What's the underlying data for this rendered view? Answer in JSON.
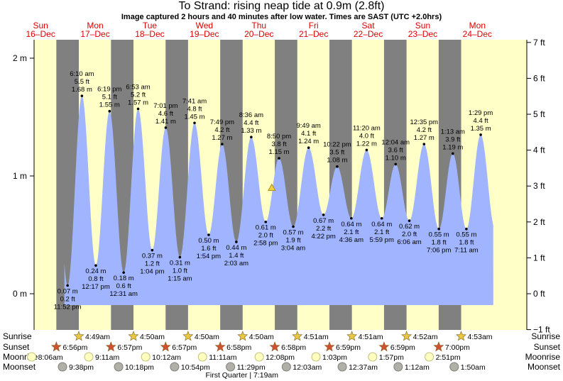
{
  "header": {
    "title": "To Strand: rising  neap tide at 0.9m (2.8ft)",
    "subtitle": "Image captured 2 hours and 40 minutes after low water. Times are SAST (UTC +2.0hrs)"
  },
  "colors": {
    "day": "#ffffc8",
    "night": "#808080",
    "tide": "#a0b4ff",
    "day_label": "#e00000",
    "sun_star": "#e8c840",
    "sunset_star": "#d05030",
    "moonrise": "#ffffc0",
    "moonset": "#b0b0a8"
  },
  "chart_data": {
    "type": "area",
    "title": "To Strand: rising  neap tide at 0.9m (2.8ft)",
    "y_left_ticks": [
      {
        "v": 0,
        "label": "0 m"
      },
      {
        "v": 1,
        "label": "1 m"
      },
      {
        "v": 2,
        "label": "2 m"
      }
    ],
    "y_right_ticks": [
      {
        "v": 7,
        "label": "7 ft"
      },
      {
        "v": 6,
        "label": "6 ft"
      },
      {
        "v": 5,
        "label": "5 ft"
      },
      {
        "v": 4,
        "label": "4 ft"
      },
      {
        "v": 3,
        "label": "3 ft"
      },
      {
        "v": 2,
        "label": "2 ft"
      },
      {
        "v": 1,
        "label": "1 ft"
      },
      {
        "v": 0,
        "label": "0 ft"
      },
      {
        "v": -1,
        "label": "−1 ft"
      }
    ],
    "ylim_m": [
      -0.2,
      2.1
    ],
    "days": [
      {
        "name": "Sun",
        "date": "16–Dec"
      },
      {
        "name": "Mon",
        "date": "17–Dec"
      },
      {
        "name": "Tue",
        "date": "18–Dec"
      },
      {
        "name": "Wed",
        "date": "19–Dec"
      },
      {
        "name": "Thu",
        "date": "20–Dec"
      },
      {
        "name": "Fri",
        "date": "21–Dec"
      },
      {
        "name": "Sat",
        "date": "22–Dec"
      },
      {
        "name": "Sun",
        "date": "23–Dec"
      },
      {
        "name": "Mon",
        "date": "24–Dec"
      }
    ],
    "tide_events": [
      {
        "t": "11:52 pm",
        "m": 0.07,
        "mlabel": "0.07 m",
        "ft": "0.2 ft",
        "type": "low",
        "day": 0,
        "hour": 23.87
      },
      {
        "t": "6:10 am",
        "m": 1.68,
        "mlabel": "1.68 m",
        "ft": "5.5 ft",
        "type": "high",
        "day": 1,
        "hour": 6.17
      },
      {
        "t": "12:17 pm",
        "m": 0.24,
        "mlabel": "0.24 m",
        "ft": "0.8 ft",
        "type": "low",
        "day": 1,
        "hour": 12.28
      },
      {
        "t": "6:19 pm",
        "m": 1.55,
        "mlabel": "1.55 m",
        "ft": "5.1 ft",
        "type": "high",
        "day": 1,
        "hour": 18.32
      },
      {
        "t": "12:31 am",
        "m": 0.18,
        "mlabel": "0.18 m",
        "ft": "0.6 ft",
        "type": "low",
        "day": 2,
        "hour": 0.52
      },
      {
        "t": "6:53 am",
        "m": 1.57,
        "mlabel": "1.57 m",
        "ft": "5.2 ft",
        "type": "high",
        "day": 2,
        "hour": 6.88
      },
      {
        "t": "1:04 pm",
        "m": 0.37,
        "mlabel": "0.37 m",
        "ft": "1.2 ft",
        "type": "low",
        "day": 2,
        "hour": 13.07
      },
      {
        "t": "7:01 pm",
        "m": 1.41,
        "mlabel": "1.41 m",
        "ft": "4.6 ft",
        "type": "high",
        "day": 2,
        "hour": 19.02
      },
      {
        "t": "1:15 am",
        "m": 0.31,
        "mlabel": "0.31 m",
        "ft": "1.0 ft",
        "type": "low",
        "day": 3,
        "hour": 1.25
      },
      {
        "t": "7:41 am",
        "m": 1.45,
        "mlabel": "1.45 m",
        "ft": "4.8 ft",
        "type": "high",
        "day": 3,
        "hour": 7.68
      },
      {
        "t": "1:54 pm",
        "m": 0.5,
        "mlabel": "0.50 m",
        "ft": "1.6 ft",
        "type": "low",
        "day": 3,
        "hour": 13.9
      },
      {
        "t": "7:49 pm",
        "m": 1.27,
        "mlabel": "1.27 m",
        "ft": "4.2 ft",
        "type": "high",
        "day": 3,
        "hour": 19.82
      },
      {
        "t": "2:03 am",
        "m": 0.44,
        "mlabel": "0.44 m",
        "ft": "1.4 ft",
        "type": "low",
        "day": 4,
        "hour": 2.05
      },
      {
        "t": "8:36 am",
        "m": 1.33,
        "mlabel": "1.33 m",
        "ft": "4.4 ft",
        "type": "high",
        "day": 4,
        "hour": 8.6
      },
      {
        "t": "2:58 pm",
        "m": 0.61,
        "mlabel": "0.61 m",
        "ft": "2.0 ft",
        "type": "low",
        "day": 4,
        "hour": 14.97
      },
      {
        "t": "8:50 pm",
        "m": 1.15,
        "mlabel": "1.15 m",
        "ft": "3.8 ft",
        "type": "high",
        "day": 4,
        "hour": 20.83
      },
      {
        "t": "3:04 am",
        "m": 0.57,
        "mlabel": "0.57 m",
        "ft": "1.9 ft",
        "type": "low",
        "day": 5,
        "hour": 3.07
      },
      {
        "t": "9:49 am",
        "m": 1.24,
        "mlabel": "1.24 m",
        "ft": "4.1 ft",
        "type": "high",
        "day": 5,
        "hour": 9.82
      },
      {
        "t": "4:22 pm",
        "m": 0.67,
        "mlabel": "0.67 m",
        "ft": "2.2 ft",
        "type": "low",
        "day": 5,
        "hour": 16.37
      },
      {
        "t": "10:22 pm",
        "m": 1.08,
        "mlabel": "1.08 m",
        "ft": "3.5 ft",
        "type": "high",
        "day": 5,
        "hour": 22.37
      },
      {
        "t": "4:36 am",
        "m": 0.64,
        "mlabel": "0.64 m",
        "ft": "2.1 ft",
        "type": "low",
        "day": 6,
        "hour": 4.6
      },
      {
        "t": "11:20 am",
        "m": 1.22,
        "mlabel": "1.22 m",
        "ft": "4.0 ft",
        "type": "high",
        "day": 6,
        "hour": 11.33
      },
      {
        "t": "5:59 pm",
        "m": 0.64,
        "mlabel": "0.64 m",
        "ft": "2.1 ft",
        "type": "low",
        "day": 6,
        "hour": 17.98
      },
      {
        "t": "12:04 am",
        "m": 1.1,
        "mlabel": "1.10 m",
        "ft": "3.6 ft",
        "type": "high",
        "day": 7,
        "hour": 0.07
      },
      {
        "t": "6:06 am",
        "m": 0.62,
        "mlabel": "0.62 m",
        "ft": "2.0 ft",
        "type": "low",
        "day": 7,
        "hour": 6.1
      },
      {
        "t": "12:35 pm",
        "m": 1.27,
        "mlabel": "1.27 m",
        "ft": "4.2 ft",
        "type": "high",
        "day": 7,
        "hour": 12.58
      },
      {
        "t": "7:06 pm",
        "m": 0.55,
        "mlabel": "0.55 m",
        "ft": "1.8 ft",
        "type": "low",
        "day": 7,
        "hour": 19.1
      },
      {
        "t": "1:13 am",
        "m": 1.19,
        "mlabel": "1.19 m",
        "ft": "3.9 ft",
        "type": "high",
        "day": 8,
        "hour": 1.22
      },
      {
        "t": "7:11 am",
        "m": 0.55,
        "mlabel": "0.55 m",
        "ft": "1.8 ft",
        "type": "low",
        "day": 8,
        "hour": 7.18
      },
      {
        "t": "1:29 pm",
        "m": 1.35,
        "mlabel": "1.35 m",
        "ft": "4.4 ft",
        "type": "high",
        "day": 8,
        "hour": 13.48
      }
    ],
    "current": {
      "m": 0.9,
      "day": 4,
      "hour": 17.63
    },
    "series_end": {
      "m": 0.9,
      "day": 8,
      "hour": 19.0
    },
    "series_start": {
      "m": 1.68,
      "day": 0,
      "hour": 0.0
    },
    "sunrise": [
      {
        "t": "4:49am",
        "day": 1,
        "hour": 4.82
      },
      {
        "t": "4:50am",
        "day": 2,
        "hour": 4.83
      },
      {
        "t": "4:50am",
        "day": 3,
        "hour": 4.83
      },
      {
        "t": "4:50am",
        "day": 4,
        "hour": 4.83
      },
      {
        "t": "4:51am",
        "day": 5,
        "hour": 4.85
      },
      {
        "t": "4:51am",
        "day": 6,
        "hour": 4.85
      },
      {
        "t": "4:52am",
        "day": 7,
        "hour": 4.87
      },
      {
        "t": "4:53am",
        "day": 8,
        "hour": 4.88
      }
    ],
    "sunset": [
      {
        "t": "6:56pm",
        "day": 0,
        "hour": 18.93
      },
      {
        "t": "6:57pm",
        "day": 1,
        "hour": 18.95
      },
      {
        "t": "6:57pm",
        "day": 2,
        "hour": 18.95
      },
      {
        "t": "6:58pm",
        "day": 3,
        "hour": 18.97
      },
      {
        "t": "6:58pm",
        "day": 4,
        "hour": 18.97
      },
      {
        "t": "6:59pm",
        "day": 5,
        "hour": 18.98
      },
      {
        "t": "6:59pm",
        "day": 6,
        "hour": 18.98
      },
      {
        "t": "7:00pm",
        "day": 7,
        "hour": 19.0
      }
    ],
    "moonrise": [
      {
        "t": "8:06am",
        "day": 0,
        "hour": 8.1
      },
      {
        "t": "9:11am",
        "day": 1,
        "hour": 9.18
      },
      {
        "t": "10:12am",
        "day": 2,
        "hour": 10.2
      },
      {
        "t": "11:11am",
        "day": 3,
        "hour": 11.18
      },
      {
        "t": "12:08pm",
        "day": 4,
        "hour": 12.13
      },
      {
        "t": "1:03pm",
        "day": 5,
        "hour": 13.05
      },
      {
        "t": "1:57pm",
        "day": 6,
        "hour": 13.95
      },
      {
        "t": "2:51pm",
        "day": 7,
        "hour": 14.85
      }
    ],
    "moonset": [
      {
        "t": "9:38pm",
        "day": 0,
        "hour": 21.63
      },
      {
        "t": "10:18pm",
        "day": 1,
        "hour": 22.3
      },
      {
        "t": "10:54pm",
        "day": 2,
        "hour": 22.9
      },
      {
        "t": "11:29pm",
        "day": 3,
        "hour": 23.48
      },
      {
        "t": "12:03am",
        "day": 5,
        "hour": 0.05
      },
      {
        "t": "12:37am",
        "day": 6,
        "hour": 0.62
      },
      {
        "t": "1:12am",
        "day": 7,
        "hour": 1.2
      },
      {
        "t": "1:50am",
        "day": 8,
        "hour": 1.83
      }
    ],
    "moon_phase": {
      "t": "First Quarter | 7:19am",
      "day": 4,
      "hour": 7.32
    },
    "row_labels": {
      "sunrise": "Sunrise",
      "sunset": "Sunset",
      "moonrise": "Moonrise",
      "moonset": "Moonset"
    }
  }
}
